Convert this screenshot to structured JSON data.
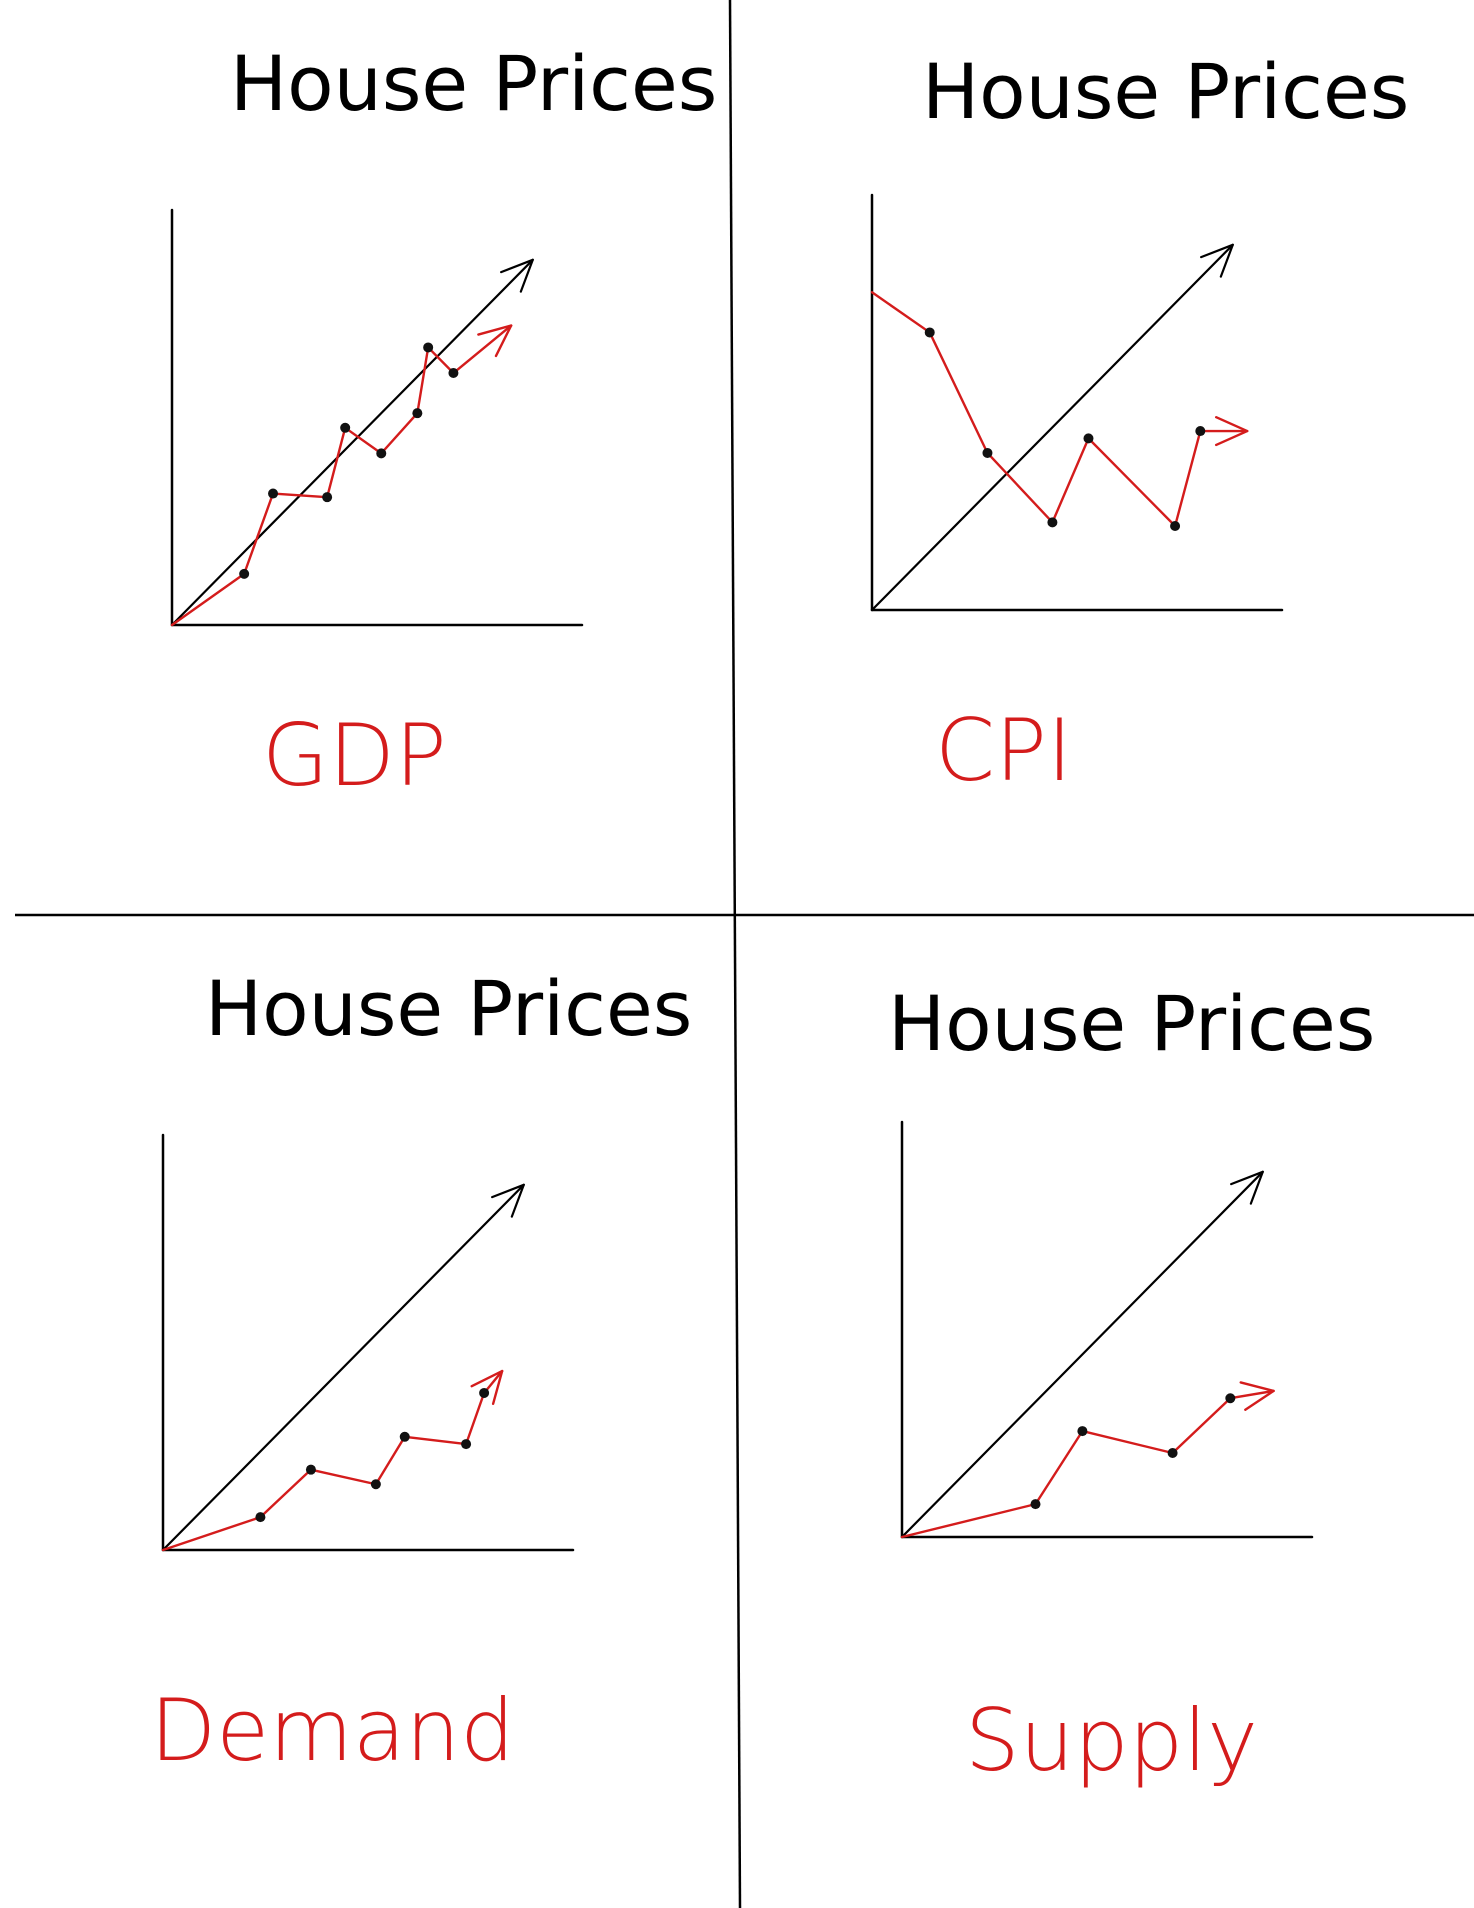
{
  "chart_data": [
    {
      "type": "line",
      "title": "House Prices",
      "xlabel": "GDP",
      "series": [
        {
          "color": "#000000",
          "trend": "rising",
          "x": [
            0,
            10
          ],
          "y": [
            0,
            10
          ]
        },
        {
          "color": "#d41c1c",
          "trend": "rising",
          "x": [
            0,
            2,
            2.8,
            4.3,
            4.8,
            5.8,
            6.8,
            7.1,
            7.8,
            9.4
          ],
          "y": [
            0,
            1.4,
            3.6,
            3.5,
            5.4,
            4.7,
            5.8,
            7.6,
            6.9,
            8.2
          ]
        }
      ]
    },
    {
      "type": "line",
      "title": "House Prices",
      "xlabel": "CPI",
      "series": [
        {
          "color": "#000000",
          "trend": "rising",
          "x": [
            0,
            10
          ],
          "y": [
            0,
            10
          ]
        },
        {
          "color": "#d41c1c",
          "trend": "falling then fluctuating",
          "x": [
            0,
            1.6,
            3.2,
            5.0,
            6.0,
            8.4,
            9.1,
            10.4
          ],
          "y": [
            8.7,
            7.6,
            4.3,
            2.4,
            4.7,
            2.3,
            4.9,
            4.9
          ]
        }
      ]
    },
    {
      "type": "line",
      "title": "House Prices",
      "xlabel": "Demand",
      "series": [
        {
          "color": "#000000",
          "trend": "rising",
          "x": [
            0,
            10
          ],
          "y": [
            0,
            10
          ]
        },
        {
          "color": "#d41c1c",
          "trend": "rising slowly",
          "x": [
            0,
            2.7,
            4.1,
            5.9,
            6.7,
            8.4,
            8.9,
            9.4
          ],
          "y": [
            0,
            0.9,
            2.2,
            1.8,
            3.1,
            2.9,
            4.3,
            4.9
          ]
        }
      ]
    },
    {
      "type": "line",
      "title": "House Prices",
      "xlabel": "Supply",
      "series": [
        {
          "color": "#000000",
          "trend": "rising",
          "x": [
            0,
            10
          ],
          "y": [
            0,
            10
          ]
        },
        {
          "color": "#d41c1c",
          "trend": "rising slowly",
          "x": [
            0,
            3.7,
            5.0,
            7.5,
            9.1,
            10.3
          ],
          "y": [
            0,
            0.9,
            2.9,
            2.3,
            3.8,
            4.0
          ]
        }
      ]
    }
  ]
}
